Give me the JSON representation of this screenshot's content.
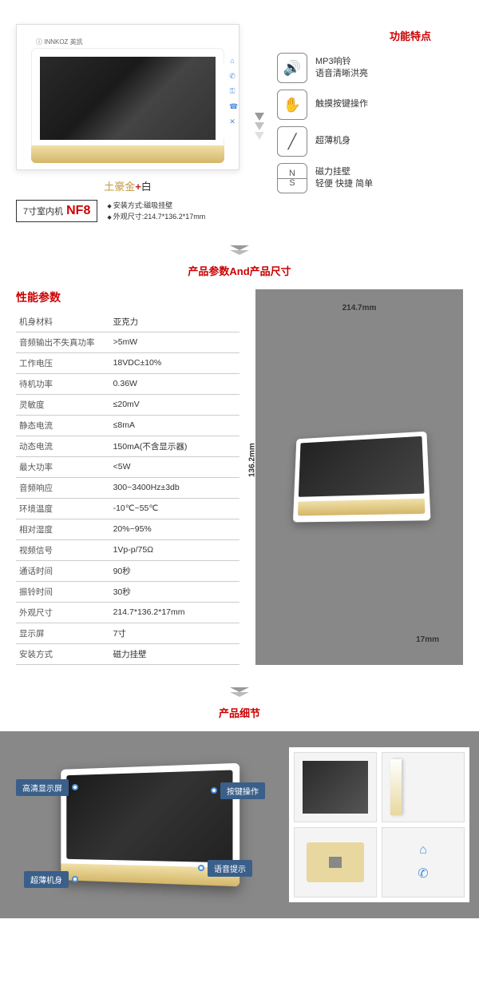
{
  "hero": {
    "logo": "ⓘ INNKOZ 英凯",
    "color_gold": "土豪金",
    "color_plus": "+",
    "color_white": "白",
    "model_prefix": "7寸室内机",
    "model_code": "NF8",
    "install_method": "安装方式:磁吸挂壁",
    "dimensions": "外观尺寸:214.7*136.2*17mm"
  },
  "features": {
    "title": "功能特点",
    "items": [
      {
        "icon": "🔊",
        "line1": "MP3响铃",
        "line2": "语音清晰洪亮"
      },
      {
        "icon": "✋",
        "line1": "触摸按键操作",
        "line2": ""
      },
      {
        "icon": "╱",
        "line1": "超薄机身",
        "line2": ""
      },
      {
        "icon": "NS",
        "line1": "磁力挂壁",
        "line2": "轻便 快捷 简单"
      }
    ]
  },
  "section2_title": "产品参数And产品尺寸",
  "specs": {
    "title": "性能参数",
    "rows": [
      [
        "机身材料",
        "亚克力"
      ],
      [
        "音频输出不失真功率",
        ">5mW"
      ],
      [
        "工作电压",
        "18VDC±10%"
      ],
      [
        "待机功率",
        "0.36W"
      ],
      [
        "灵敏度",
        "≤20mV"
      ],
      [
        "静态电流",
        "≤8mA"
      ],
      [
        "动态电流",
        "150mA(不含显示器)"
      ],
      [
        "最大功率",
        "<5W"
      ],
      [
        "音频响应",
        "300~3400Hz±3db"
      ],
      [
        "环境温度",
        "-10℃~55℃"
      ],
      [
        "相对湿度",
        "20%~95%"
      ],
      [
        "视频信号",
        "1Vp-p/75Ω"
      ],
      [
        "通话时间",
        "90秒"
      ],
      [
        "振铃时间",
        "30秒"
      ],
      [
        "外观尺寸",
        "214.7*136.2*17mm"
      ],
      [
        "显示屏",
        "7寸"
      ],
      [
        "安装方式",
        "磁力挂壁"
      ]
    ]
  },
  "dims": {
    "w": "214.7mm",
    "h": "136.2mm",
    "d": "17mm"
  },
  "section3_title": "产品细节",
  "callouts": {
    "c1": "高清显示屏",
    "c2": "超薄机身",
    "c3": "按键操作",
    "c4": "语音提示"
  },
  "colors": {
    "accent": "#c00",
    "gold": "#c19a3e",
    "callout_bg": "#3a5f8a",
    "icon_blue": "#4a90d9"
  }
}
